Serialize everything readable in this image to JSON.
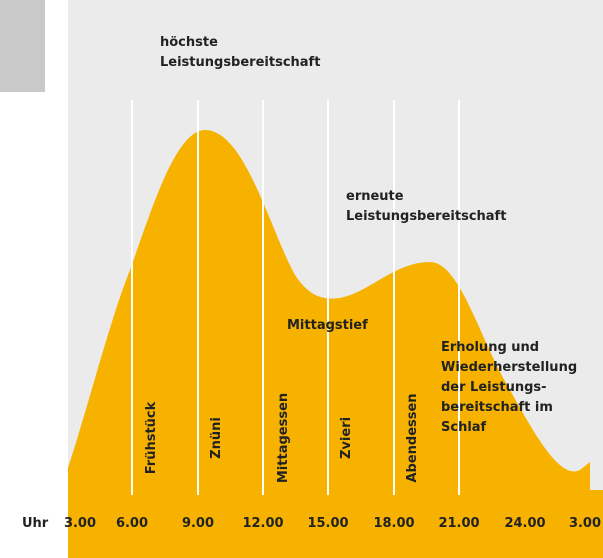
{
  "annotations": {
    "peak": [
      "höchste",
      "Leistungsbereitschaft"
    ],
    "second_peak": [
      "erneute",
      "Leistungsbereitschaft"
    ],
    "dip": [
      "Mittagstief"
    ],
    "recovery": [
      "Erholung und",
      "Wiederherstellung",
      "der Leistungs-",
      "bereitschaft im",
      "Schlaf"
    ]
  },
  "meals": [
    "Frühstück",
    "Znüni",
    "Mittagessen",
    "Zvieri",
    "Abendessen"
  ],
  "time_axis": {
    "unit": "Uhr",
    "times": [
      "3.00",
      "6.00",
      "9.00",
      "12.00",
      "15.00",
      "18.00",
      "21.00",
      "24.00",
      "3.00"
    ]
  }
}
